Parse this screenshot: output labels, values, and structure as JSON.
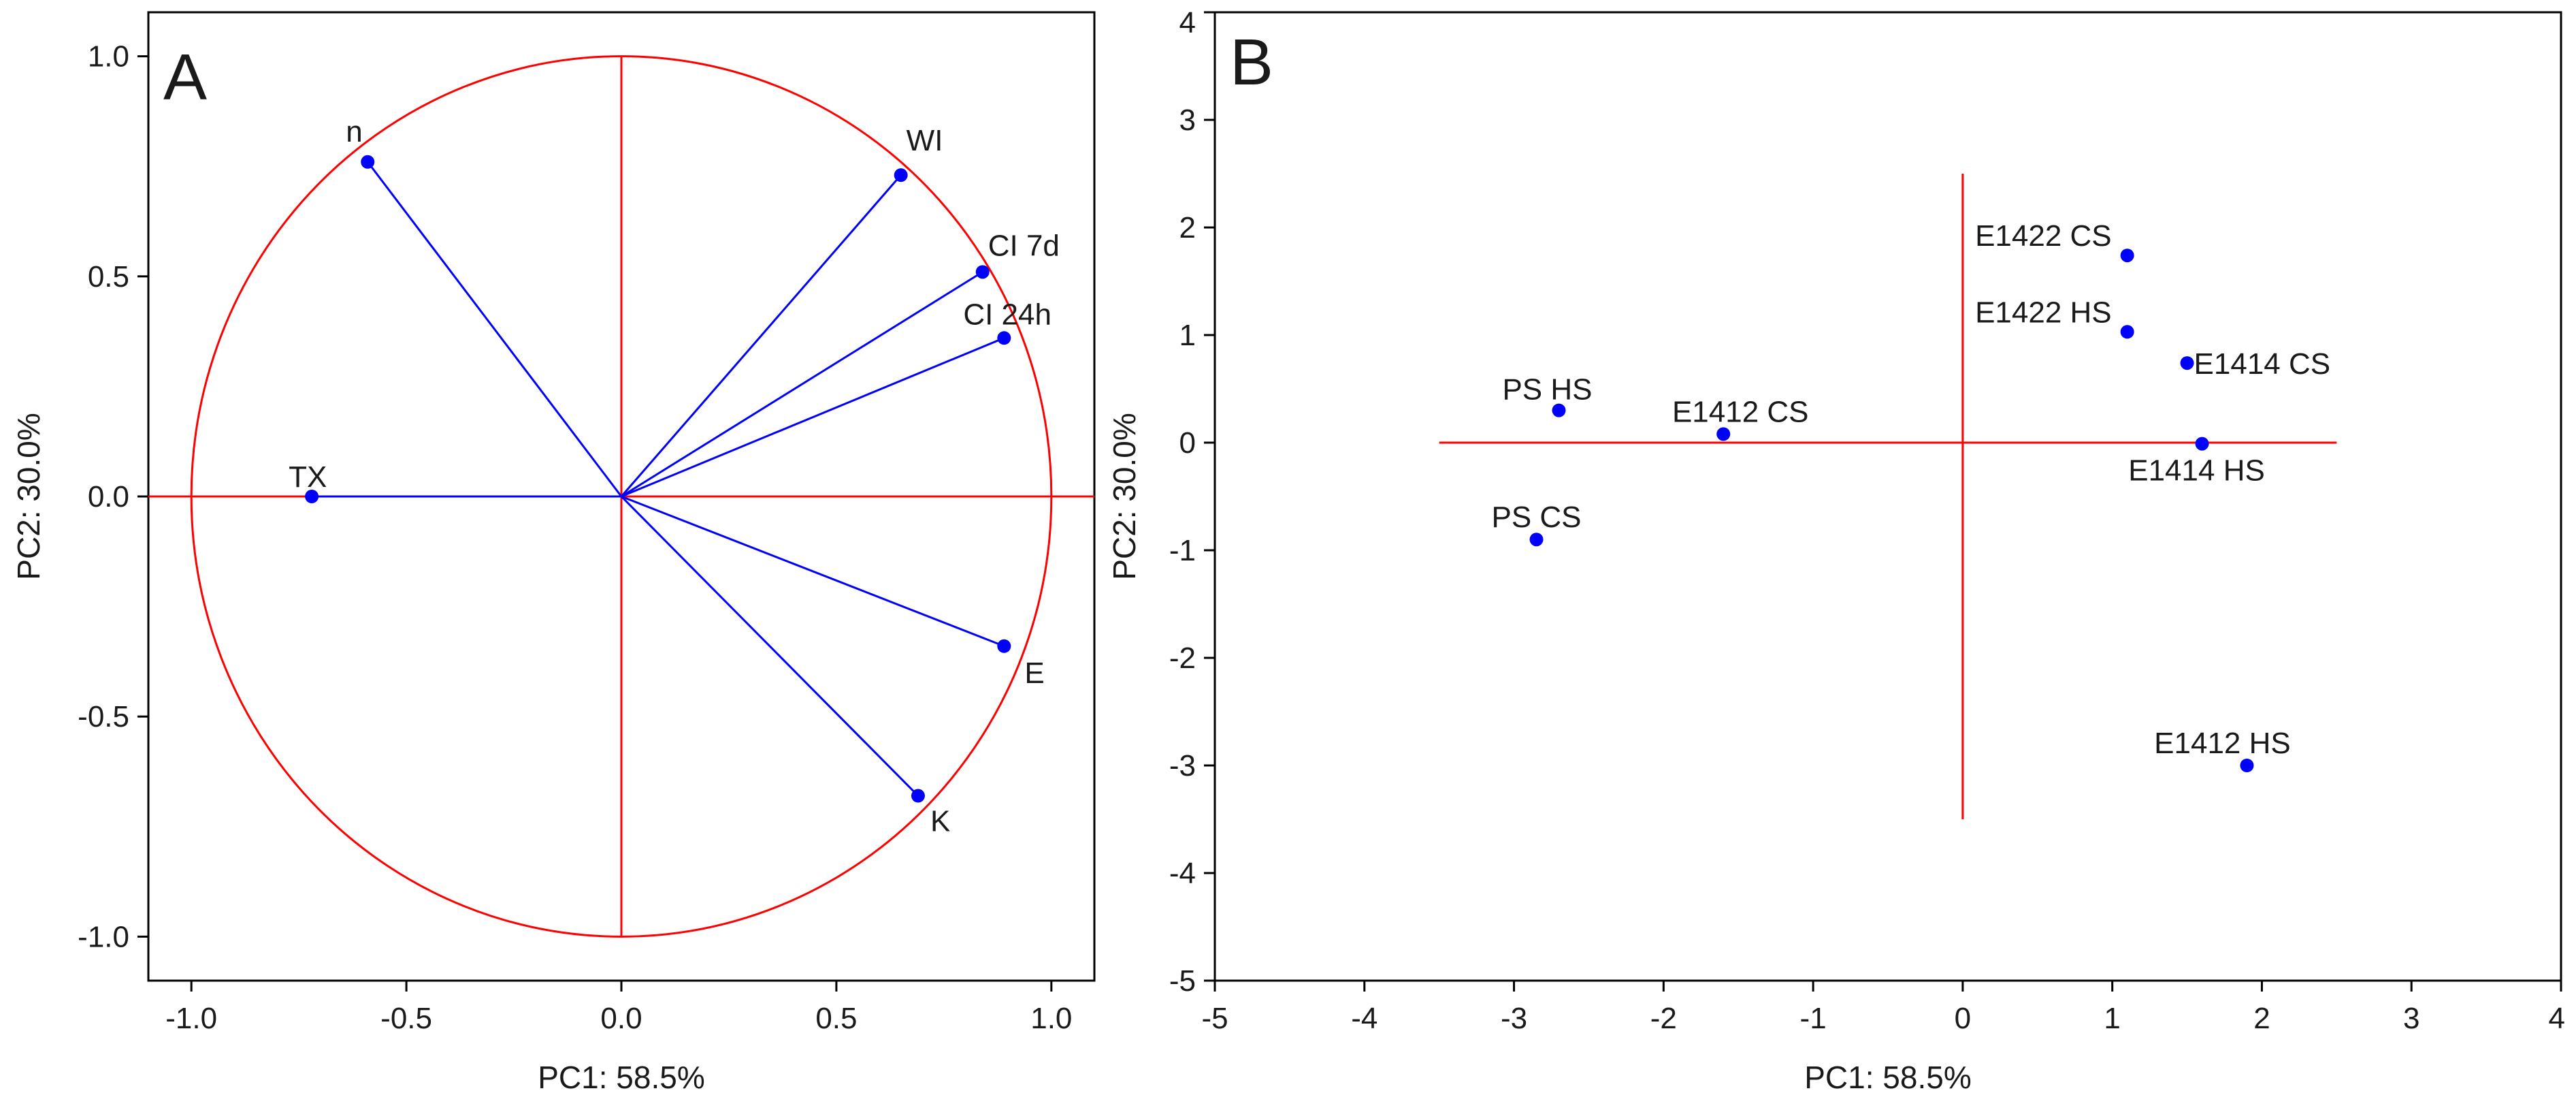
{
  "chart_data": [
    {
      "panel": "A",
      "type": "scatter",
      "subtype": "loading-plot (correlation circle)",
      "xlabel": "PC1: 58.5%",
      "ylabel": "PC2: 30.0%",
      "xlim": [
        -1.1,
        1.1
      ],
      "ylim": [
        -1.1,
        1.1
      ],
      "xticks": [
        -1.0,
        -0.5,
        0.0,
        0.5,
        1.0
      ],
      "yticks": [
        -1.0,
        -0.5,
        0.0,
        0.5,
        1.0
      ],
      "xtick_labels": [
        "-1.0",
        "-0.5",
        "0.0",
        "0.5",
        "1.0"
      ],
      "ytick_labels": [
        "-1.0",
        "-0.5",
        "0.0",
        "0.5",
        "1.0"
      ],
      "unit_circle_radius": 1.0,
      "reference_lines": {
        "x": 0,
        "y": 0
      },
      "colors": {
        "frame": "#000000",
        "circle": "#ff0000",
        "axes": "#ff0000",
        "vector": "#0000ff",
        "point": "#0000ff"
      },
      "points": [
        {
          "label": "n",
          "x": -0.59,
          "y": 0.76
        },
        {
          "label": "WI",
          "x": 0.65,
          "y": 0.73
        },
        {
          "label": "CI 7d",
          "x": 0.84,
          "y": 0.51
        },
        {
          "label": "CI 24h",
          "x": 0.89,
          "y": 0.36
        },
        {
          "label": "TX",
          "x": -0.72,
          "y": 0.0
        },
        {
          "label": "E",
          "x": 0.89,
          "y": -0.34
        },
        {
          "label": "K",
          "x": 0.69,
          "y": -0.68
        }
      ]
    },
    {
      "panel": "B",
      "type": "scatter",
      "subtype": "score-plot",
      "xlabel": "PC1: 58.5%",
      "ylabel": "PC2: 30.0%",
      "xlim": [
        -5,
        4
      ],
      "ylim": [
        -5,
        4
      ],
      "xticks": [
        -5,
        -4,
        -3,
        -2,
        -1,
        0,
        1,
        2,
        3,
        4
      ],
      "yticks": [
        -5,
        -4,
        -3,
        -2,
        -1,
        0,
        1,
        2,
        3,
        4
      ],
      "xtick_labels": [
        "-5",
        "-4",
        "-3",
        "-2",
        "-1",
        "0",
        "1",
        "2",
        "3",
        "4"
      ],
      "ytick_labels": [
        "-5",
        "-4",
        "-3",
        "-2",
        "-1",
        "0",
        "1",
        "2",
        "3",
        "4"
      ],
      "reference_lines": {
        "x": {
          "value": 0,
          "range": [
            -3.5,
            2.5
          ]
        },
        "y": {
          "value": 0,
          "range": [
            -3.5,
            2.5
          ]
        }
      },
      "colors": {
        "frame": "#000000",
        "axes": "#ff0000",
        "point": "#0000ff"
      },
      "points": [
        {
          "label": "E1422 CS",
          "x": 1.1,
          "y": 1.74
        },
        {
          "label": "E1422 HS",
          "x": 1.1,
          "y": 1.03
        },
        {
          "label": "E1414 CS",
          "x": 1.5,
          "y": 0.74
        },
        {
          "label": "PS HS",
          "x": -2.7,
          "y": 0.3
        },
        {
          "label": "E1412 CS",
          "x": -1.6,
          "y": 0.08
        },
        {
          "label": "E1414 HS",
          "x": 1.6,
          "y": -0.01
        },
        {
          "label": "PS CS",
          "x": -2.85,
          "y": -0.9
        },
        {
          "label": "E1412 HS",
          "x": 1.9,
          "y": -3.0
        }
      ]
    }
  ]
}
